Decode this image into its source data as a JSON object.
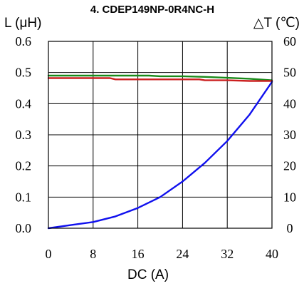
{
  "chart_data": {
    "type": "line",
    "title": "4. CDEP149NP-0R4NC-H",
    "xlabel": "DC (A)",
    "ylabel_left": "L (μH)",
    "ylabel_right": "△T (℃)",
    "xlim": [
      0,
      40
    ],
    "ylim_left": [
      0.0,
      0.6
    ],
    "ylim_right": [
      0,
      60
    ],
    "x_ticks": [
      "0",
      "8",
      "16",
      "24",
      "32",
      "40"
    ],
    "y_left_ticks": [
      "0.0",
      "0.1",
      "0.2",
      "0.3",
      "0.4",
      "0.5",
      "0.6"
    ],
    "y_right_ticks": [
      "0",
      "10",
      "20",
      "30",
      "40",
      "50",
      "60"
    ],
    "grid": true,
    "series": [
      {
        "color": "#1a8a1a",
        "axis": "left",
        "x": [
          0,
          4,
          8,
          12,
          16,
          18,
          20,
          24,
          28,
          32,
          36,
          40
        ],
        "y": [
          0.49,
          0.49,
          0.49,
          0.49,
          0.49,
          0.49,
          0.488,
          0.488,
          0.486,
          0.483,
          0.48,
          0.475
        ]
      },
      {
        "color": "#cc2020",
        "axis": "left",
        "x": [
          0,
          4,
          8,
          11,
          12,
          16,
          20,
          24,
          27,
          28,
          32,
          36,
          40
        ],
        "y": [
          0.482,
          0.482,
          0.482,
          0.482,
          0.478,
          0.478,
          0.478,
          0.478,
          0.478,
          0.475,
          0.475,
          0.473,
          0.473
        ]
      },
      {
        "color": "#1010ee",
        "axis": "right",
        "x": [
          0,
          4,
          8,
          12,
          16,
          20,
          24,
          28,
          32,
          36,
          40
        ],
        "y": [
          0,
          1,
          2,
          3.8,
          6.5,
          10,
          15,
          21,
          28,
          36.5,
          47
        ]
      }
    ]
  }
}
